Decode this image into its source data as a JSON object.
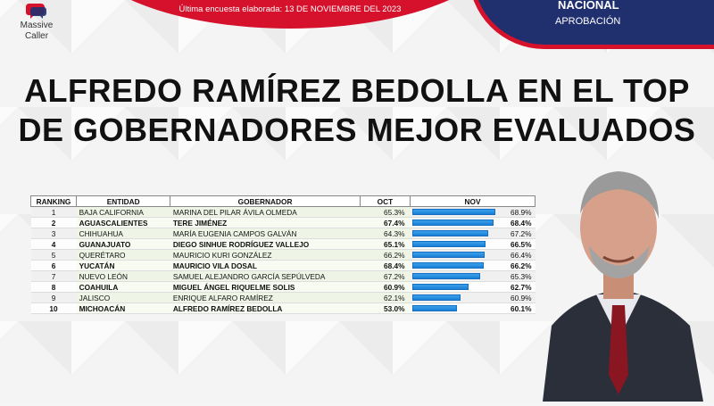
{
  "header": {
    "date_text": "Última encuesta elaborada: 13 DE NOVIEMBRE DEL 2023",
    "badge_line1": "NACIONAL",
    "badge_line2": "APROBACIÓN",
    "logo_line1": "Massive",
    "logo_line2": "Caller"
  },
  "headline": {
    "line1": "ALFREDO RAMÍREZ BEDOLLA EN EL TOP",
    "line2": "DE GOBERNADORES MEJOR EVALUADOS"
  },
  "table": {
    "columns": [
      "RANKING",
      "ENTIDAD",
      "GOBERNADOR",
      "OCT",
      "NOV"
    ],
    "rows": [
      {
        "rank": "1",
        "entidad": "BAJA CALIFORNIA",
        "gobernador": "MARINA DEL PILAR ÁVILA OLMEDA",
        "oct": "65.3%",
        "nov": "68.9%",
        "nov_value": 68.9,
        "bold": false
      },
      {
        "rank": "2",
        "entidad": "AGUASCALIENTES",
        "gobernador": "TERE JIMÉNEZ",
        "oct": "67.4%",
        "nov": "68.4%",
        "nov_value": 68.4,
        "bold": true
      },
      {
        "rank": "3",
        "entidad": "CHIHUAHUA",
        "gobernador": "MARÍA EUGENIA CAMPOS GALVÁN",
        "oct": "64.3%",
        "nov": "67.2%",
        "nov_value": 67.2,
        "bold": false
      },
      {
        "rank": "4",
        "entidad": "GUANAJUATO",
        "gobernador": "DIEGO SINHUE RODRÍGUEZ VALLEJO",
        "oct": "65.1%",
        "nov": "66.5%",
        "nov_value": 66.5,
        "bold": true
      },
      {
        "rank": "5",
        "entidad": "QUERÉTARO",
        "gobernador": "MAURICIO KURI GONZÁLEZ",
        "oct": "66.2%",
        "nov": "66.4%",
        "nov_value": 66.4,
        "bold": false
      },
      {
        "rank": "6",
        "entidad": "YUCATÁN",
        "gobernador": "MAURICIO VILA DOSAL",
        "oct": "68.4%",
        "nov": "66.2%",
        "nov_value": 66.2,
        "bold": true
      },
      {
        "rank": "7",
        "entidad": "NUEVO LEÓN",
        "gobernador": "SAMUEL ALEJANDRO GARCÍA SEPÚLVEDA",
        "oct": "67.2%",
        "nov": "65.3%",
        "nov_value": 65.3,
        "bold": false
      },
      {
        "rank": "8",
        "entidad": "COAHUILA",
        "gobernador": "MIGUEL ÁNGEL RIQUELME SOLIS",
        "oct": "60.9%",
        "nov": "62.7%",
        "nov_value": 62.7,
        "bold": true
      },
      {
        "rank": "9",
        "entidad": "JALISCO",
        "gobernador": "ENRIQUE ALFARO RAMÍREZ",
        "oct": "62.1%",
        "nov": "60.9%",
        "nov_value": 60.9,
        "bold": false
      },
      {
        "rank": "10",
        "entidad": "MICHOACÁN",
        "gobernador": "ALFREDO RAMÍREZ BEDOLLA",
        "oct": "53.0%",
        "nov": "60.1%",
        "nov_value": 60.1,
        "bold": true
      }
    ]
  },
  "colors": {
    "brand_red": "#d5112b",
    "brand_navy": "#20306f",
    "bar_blue": "#1c7fd6"
  }
}
